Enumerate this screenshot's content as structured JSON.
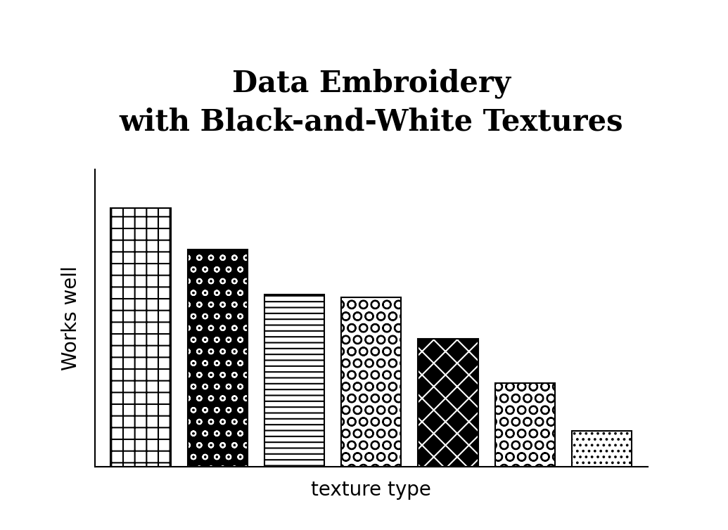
{
  "chart_data": {
    "type": "bar",
    "title": "Data Embroidery\nwith Black-and-White Textures",
    "x_label": "texture type",
    "y_label": "Works well",
    "categories": [
      null,
      null,
      null,
      null,
      null,
      null,
      null
    ],
    "values": [
      87,
      73,
      58,
      57,
      43,
      28,
      12
    ],
    "colors": [
      "#ffffff",
      "#000000",
      "#ffffff",
      "#ffffff",
      "#000000",
      "#ffffff",
      "#ffffff"
    ],
    "ylim": [
      0,
      100
    ],
    "tick_labels": false,
    "grid": false
  }
}
